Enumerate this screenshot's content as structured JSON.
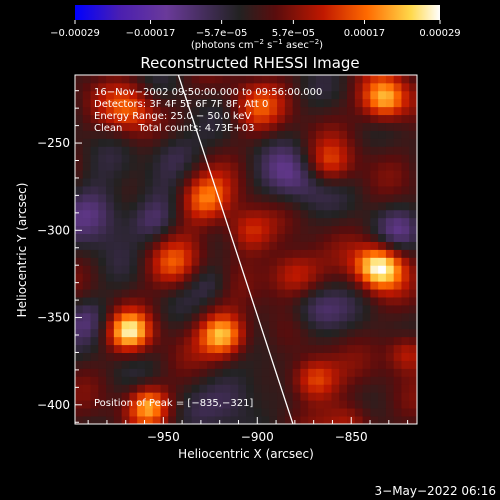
{
  "chart_data": {
    "type": "heatmap",
    "title": "Reconstructed RHESSI Image",
    "xlabel": "Heliocentric X (arcsec)",
    "ylabel": "Heliocentric Y (arcsec)",
    "xlim": [
      -997,
      -815
    ],
    "ylim": [
      -411,
      -211
    ],
    "x_ticks": [
      {
        "value": -950,
        "label": "−950"
      },
      {
        "value": -900,
        "label": "−900"
      },
      {
        "value": -850,
        "label": "−850"
      }
    ],
    "y_ticks": [
      {
        "value": -250,
        "label": "−250"
      },
      {
        "value": -300,
        "label": "−300"
      },
      {
        "value": -350,
        "label": "−350"
      },
      {
        "value": -400,
        "label": "−400"
      }
    ],
    "colorbar": {
      "min": -0.00029,
      "max": 0.00029,
      "tick_values": [
        -0.00029,
        -0.00017,
        -5.7e-05,
        5.7e-05,
        0.00017,
        0.00029
      ],
      "tick_labels": [
        "−0.00029",
        "−0.00017",
        "−5.7e−05",
        "5.7e−05",
        "0.00017",
        "0.00029"
      ],
      "unit_text": "(photons cm",
      "unit_sup1": "−2",
      "unit_mid": " s",
      "unit_sup2": "−1",
      "unit_end": " asec",
      "unit_sup3": "−2",
      "unit_close": ")",
      "colors": [
        "#0000ff",
        "#4b1fb0",
        "#6a3a9a",
        "#222222",
        "#8a1010",
        "#e21e00",
        "#ff7a00",
        "#ffd84a",
        "#ffffff"
      ]
    },
    "annotations": [
      "16−Nov−2002 09:50:00.000 to 09:56:00.000",
      "Detectors: 3F 4F 5F 6F 7F 8F, Att 0",
      "Energy Range: 25.0 − 50.0 keV",
      "Clean     Total counts: 4.73E+03"
    ],
    "peak_label": "Position of Peak = [−835,−321]",
    "peak": {
      "x": -835,
      "y": -321
    },
    "limb_line": [
      [
        -942,
        -211
      ],
      [
        -881,
        -411
      ]
    ],
    "blobs": [
      {
        "x": -835,
        "y": -321,
        "v": 0.00029,
        "s": 9
      },
      {
        "x": -918,
        "y": -360,
        "v": 0.00026,
        "s": 9
      },
      {
        "x": -968,
        "y": -358,
        "v": 0.00024,
        "s": 8
      },
      {
        "x": -832,
        "y": -225,
        "v": 0.00024,
        "s": 9
      },
      {
        "x": -958,
        "y": -400,
        "v": 0.0002,
        "s": 8
      },
      {
        "x": -928,
        "y": -282,
        "v": 0.00018,
        "s": 10
      },
      {
        "x": -968,
        "y": -230,
        "v": 0.00015,
        "s": 10
      },
      {
        "x": -870,
        "y": -385,
        "v": 0.00018,
        "s": 9
      },
      {
        "x": -880,
        "y": -325,
        "v": 0.00016,
        "s": 10
      },
      {
        "x": -905,
        "y": -300,
        "v": 0.00014,
        "s": 9
      },
      {
        "x": -945,
        "y": -320,
        "v": 0.00013,
        "s": 10
      },
      {
        "x": -862,
        "y": -262,
        "v": 0.00014,
        "s": 9
      },
      {
        "x": -900,
        "y": -230,
        "v": 0.00012,
        "s": 10
      },
      {
        "x": -850,
        "y": -410,
        "v": 0.00012,
        "s": 9
      },
      {
        "x": -820,
        "y": -370,
        "v": 0.00014,
        "s": 8
      },
      {
        "x": -880,
        "y": -270,
        "v": -0.00012,
        "s": 12
      },
      {
        "x": -985,
        "y": -290,
        "v": -0.00013,
        "s": 12
      },
      {
        "x": -945,
        "y": -255,
        "v": -9e-05,
        "s": 10
      },
      {
        "x": -870,
        "y": -345,
        "v": -0.00011,
        "s": 10
      },
      {
        "x": -910,
        "y": -395,
        "v": -0.0001,
        "s": 12
      },
      {
        "x": -955,
        "y": -295,
        "v": -9e-05,
        "s": 9
      },
      {
        "x": -825,
        "y": -300,
        "v": -8e-05,
        "s": 9
      },
      {
        "x": -990,
        "y": -350,
        "v": -8e-05,
        "s": 9
      },
      {
        "x": -925,
        "y": -330,
        "v": -7e-05,
        "s": 8
      }
    ]
  },
  "footer_timestamp": "3−May−2022 06:16"
}
